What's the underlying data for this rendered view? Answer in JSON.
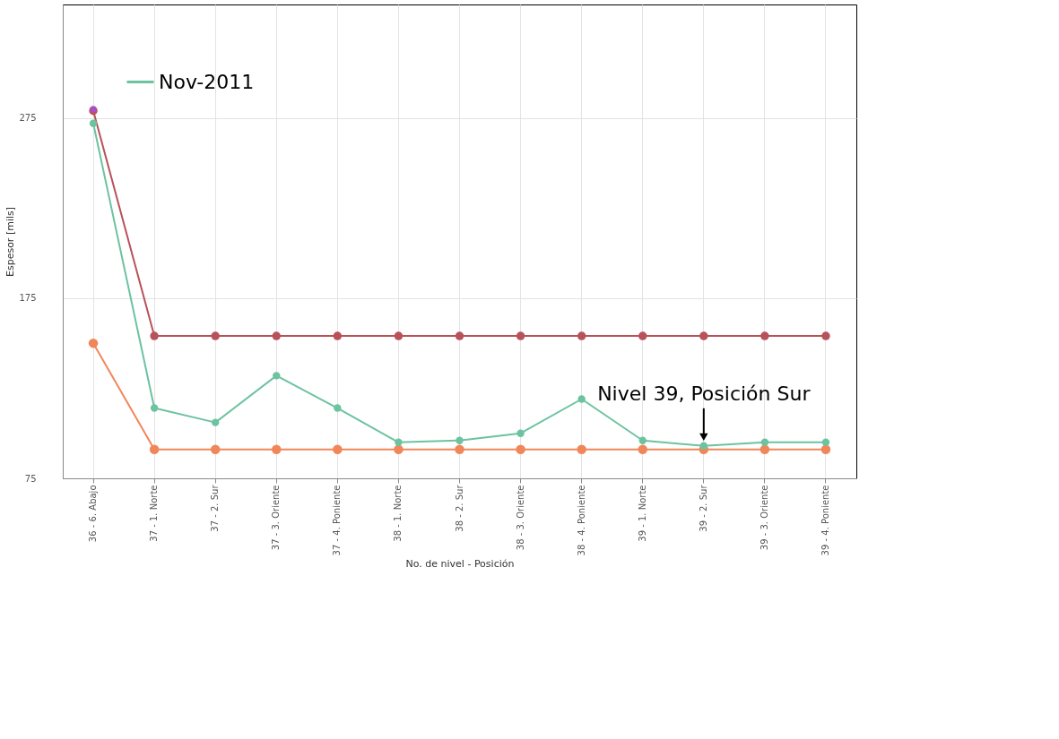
{
  "chart_data": {
    "type": "line",
    "xlabel": "No. de nivel - Posición",
    "ylabel": "Espesor [mils]",
    "categories": [
      "36 - 6. Abajo",
      "37 - 1. Norte",
      "37 - 2. Sur",
      "37 - 3. Oriente",
      "37 - 4. Poniente",
      "38 - 1. Norte",
      "38 - 2. Sur",
      "38 - 3. Oriente",
      "38 - 4. Poniente",
      "39 - 1. Norte",
      "39 - 2. Sur",
      "39 - 3. Oriente",
      "39 - 4. Poniente"
    ],
    "series": [
      {
        "color": "#a64fc8",
        "values": [
          280,
          null,
          null,
          null,
          null,
          null,
          null,
          null,
          null,
          null,
          null,
          null,
          null
        ]
      },
      {
        "color": "#f0875a",
        "values": [
          150,
          91,
          91,
          91,
          91,
          91,
          91,
          91,
          91,
          91,
          91,
          91,
          91
        ]
      },
      {
        "color": "#b8525a",
        "values": [
          279,
          154,
          154,
          154,
          154,
          154,
          154,
          154,
          154,
          154,
          154,
          154,
          154
        ]
      },
      {
        "name": "Nov-2011",
        "color": "#6cc3a0",
        "values": [
          272,
          114,
          106,
          132,
          114,
          95,
          96,
          100,
          119,
          96,
          93,
          95,
          95
        ]
      }
    ],
    "ylim": [
      75,
      338
    ],
    "yticks": [
      75,
      175,
      275
    ],
    "grid": true,
    "legend": "top left",
    "marker": "circle",
    "line_style": "solid",
    "annotations": [
      {
        "text": "Nivel 39, Posición Sur",
        "x": "39 - 2. Sur",
        "y": 93
      }
    ]
  }
}
